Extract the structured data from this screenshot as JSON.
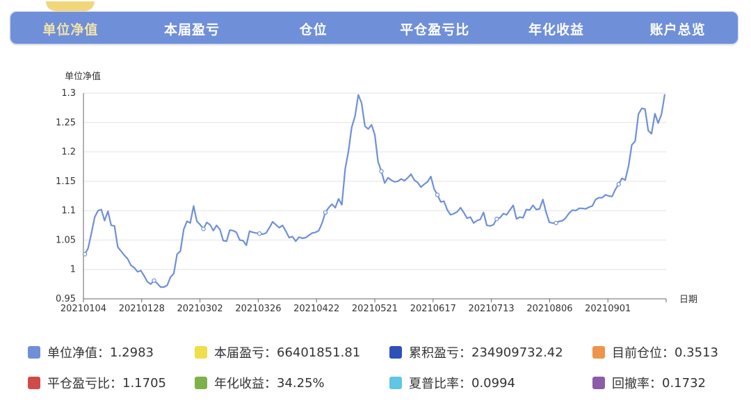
{
  "tabs": [
    {
      "label": "单位净值",
      "active": true
    },
    {
      "label": "本届盈亏",
      "active": false
    },
    {
      "label": "仓位",
      "active": false
    },
    {
      "label": "平仓盈亏比",
      "active": false
    },
    {
      "label": "年化收益",
      "active": false
    },
    {
      "label": "账户总览",
      "active": false
    }
  ],
  "chart_data": {
    "type": "line",
    "ylabel": "单位净值",
    "xlabel": "日期",
    "ylim": [
      0.95,
      1.3
    ],
    "yticks": [
      "1.3",
      "1.25",
      "1.2",
      "1.15",
      "1.1",
      "1.05",
      "1",
      "0.95"
    ],
    "xticks": [
      "20210104",
      "20210128",
      "20210302",
      "20210326",
      "20210422",
      "20210521",
      "20210617",
      "20210713",
      "20210806",
      "20210901"
    ],
    "grid": true,
    "color": "#6f8fd9",
    "series": [
      {
        "values": [
          1.026,
          1.036,
          1.062,
          1.089,
          1.1,
          1.102,
          1.083,
          1.099,
          1.075,
          1.074,
          1.038,
          1.031,
          1.024,
          1.018,
          1.007,
          1.003,
          0.996,
          0.998,
          0.989,
          0.979,
          0.975,
          0.981,
          0.976,
          0.97,
          0.97,
          0.973,
          0.987,
          0.993,
          1.026,
          1.031,
          1.068,
          1.082,
          1.079,
          1.108,
          1.082,
          1.076,
          1.069,
          1.08,
          1.076,
          1.066,
          1.075,
          1.068,
          1.049,
          1.048,
          1.067,
          1.066,
          1.063,
          1.05,
          1.049,
          1.041,
          1.065,
          1.063,
          1.062,
          1.061,
          1.06,
          1.062,
          1.071,
          1.081,
          1.076,
          1.071,
          1.075,
          1.065,
          1.054,
          1.056,
          1.048,
          1.055,
          1.053,
          1.054,
          1.058,
          1.062,
          1.063,
          1.066,
          1.079,
          1.097,
          1.105,
          1.111,
          1.105,
          1.12,
          1.11,
          1.171,
          1.201,
          1.242,
          1.261,
          1.297,
          1.283,
          1.244,
          1.239,
          1.246,
          1.229,
          1.183,
          1.167,
          1.147,
          1.156,
          1.152,
          1.149,
          1.15,
          1.154,
          1.151,
          1.156,
          1.162,
          1.152,
          1.148,
          1.14,
          1.145,
          1.149,
          1.158,
          1.137,
          1.127,
          1.115,
          1.116,
          1.101,
          1.093,
          1.095,
          1.098,
          1.105,
          1.097,
          1.087,
          1.089,
          1.079,
          1.083,
          1.085,
          1.097,
          1.075,
          1.074,
          1.076,
          1.086,
          1.088,
          1.095,
          1.093,
          1.101,
          1.109,
          1.086,
          1.089,
          1.088,
          1.102,
          1.101,
          1.109,
          1.102,
          1.103,
          1.119,
          1.097,
          1.08,
          1.079,
          1.079,
          1.082,
          1.083,
          1.088,
          1.096,
          1.101,
          1.1,
          1.104,
          1.104,
          1.103,
          1.106,
          1.108,
          1.119,
          1.122,
          1.122,
          1.127,
          1.125,
          1.124,
          1.136,
          1.145,
          1.155,
          1.152,
          1.176,
          1.212,
          1.218,
          1.264,
          1.274,
          1.273,
          1.236,
          1.231,
          1.265,
          1.249,
          1.264,
          1.298
        ],
        "markers": [
          0,
          21,
          36,
          53,
          73,
          90,
          107,
          125,
          143,
          162
        ]
      }
    ]
  },
  "legend": [
    {
      "label": "单位净值：",
      "value": "1.2983",
      "color": "#6f8fd9"
    },
    {
      "label": "本届盈亏：",
      "value": "66401851.81",
      "color": "#f0de4a"
    },
    {
      "label": "累积盈亏：",
      "value": "234909732.42",
      "color": "#2e51b8"
    },
    {
      "label": "目前仓位：",
      "value": "0.3513",
      "color": "#f0944a"
    },
    {
      "label": "平仓盈亏比：",
      "value": "1.1705",
      "color": "#d04b47"
    },
    {
      "label": "年化收益：",
      "value": "34.25%",
      "color": "#7db24a"
    },
    {
      "label": "夏普比率：",
      "value": "0.0994",
      "color": "#5fc6e3"
    },
    {
      "label": "回撤率：",
      "value": "0.1732",
      "color": "#8c5ca8"
    }
  ]
}
